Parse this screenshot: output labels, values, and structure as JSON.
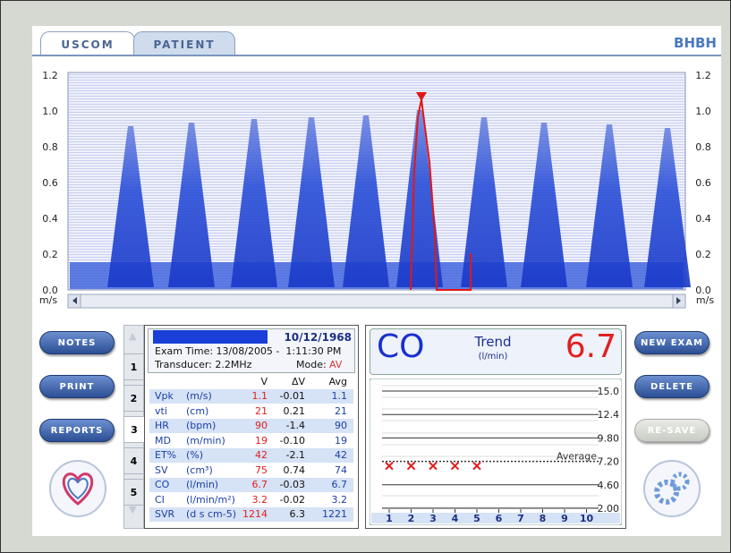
{
  "tabs": [
    "USCOM",
    "PATIENT"
  ],
  "header_code": "BHBH",
  "doppler": {
    "yticks": [
      "1.2",
      "1.0",
      "0.8",
      "0.6",
      "0.4",
      "0.2",
      "0.0"
    ],
    "unit": "m/s"
  },
  "left_buttons": [
    "NOTES",
    "PRINT",
    "REPORTS"
  ],
  "right_buttons": [
    "NEW EXAM",
    "DELETE",
    "RE-SAVE"
  ],
  "exam_tabs": [
    "1",
    "2",
    "3",
    "4",
    "5"
  ],
  "patient": {
    "dob": "10/12/1968",
    "exam_time": "Exam Time: 13/08/2005 -  1:11:30 PM",
    "transducer": "Transducer: 2.2MHz",
    "mode_label": "Mode:",
    "mode": "AV"
  },
  "table": {
    "columns": [
      "V",
      "ΔV",
      "Avg"
    ],
    "rows": [
      [
        "Vpk",
        "(m/s)",
        "1.1",
        "-0.01",
        "1.1"
      ],
      [
        "vti",
        "(cm)",
        "21",
        "0.21",
        "21"
      ],
      [
        "HR",
        "(bpm)",
        "90",
        "-1.4",
        "90"
      ],
      [
        "MD",
        "(m/min)",
        "19",
        "-0.10",
        "19"
      ],
      [
        "ET%",
        "(%)",
        "42",
        "-2.1",
        "42"
      ],
      [
        "SV",
        "(cm³)",
        "75",
        "0.74",
        "74"
      ],
      [
        "CO",
        "(l/min)",
        "6.7",
        "-0.03",
        "6.7"
      ],
      [
        "CI",
        "(l/min/m²)",
        "3.2",
        "-0.02",
        "3.2"
      ],
      [
        "SVR",
        "(d s cm-5)",
        "1214",
        "6.3",
        "1221"
      ]
    ]
  },
  "trend": {
    "parameter": "CO",
    "title": "Trend",
    "unit": "(l/min)",
    "current": "6.7",
    "yticks": [
      {
        "value": 15,
        "label": "15.0"
      },
      {
        "value": 12.4,
        "label": "12.4"
      },
      {
        "value": 9.8,
        "label": "9.80"
      },
      {
        "value": 7.2,
        "label": "7.20"
      },
      {
        "value": 4.6,
        "label": "4.60"
      },
      {
        "value": 2,
        "label": "2.00"
      }
    ],
    "average_label": "Average",
    "xticks": [
      1,
      2,
      3,
      4,
      5,
      6,
      7,
      8,
      9,
      10
    ],
    "values": [
      6.7,
      6.7,
      6.7,
      6.7,
      6.7
    ]
  }
}
